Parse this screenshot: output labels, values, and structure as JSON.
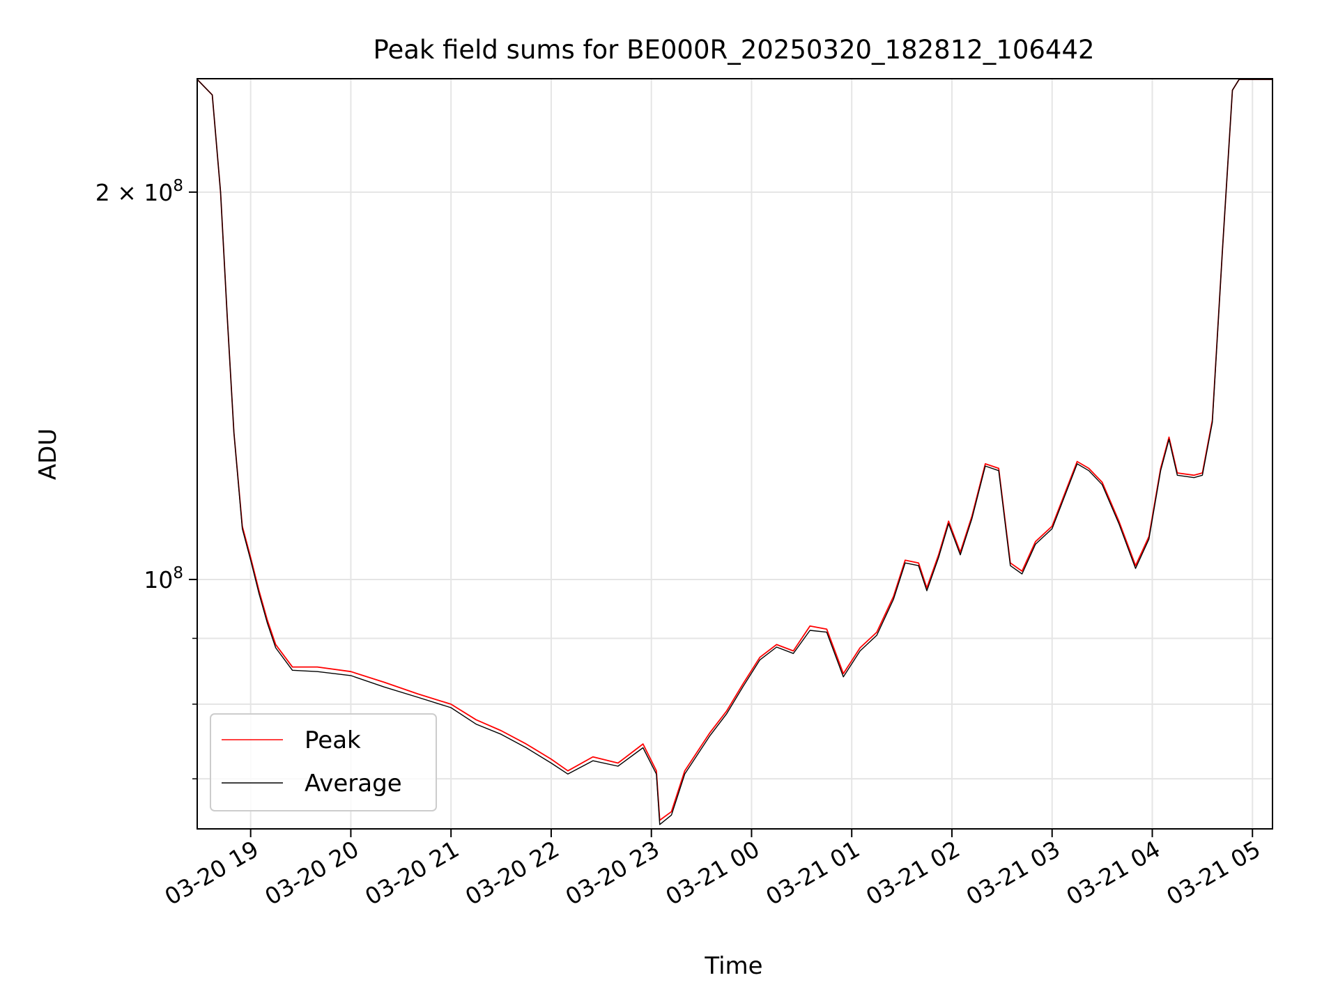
{
  "chart_data": {
    "type": "line",
    "title": "Peak field sums for BE000R_20250320_182812_106442",
    "xlabel": "Time",
    "ylabel": "ADU",
    "yscale": "log",
    "grid": true,
    "legend_position": "lower-left",
    "xlim": [
      "2025-03-20 18:28",
      "2025-03-21 05:12"
    ],
    "ylim": [
      64000000,
      245000000
    ],
    "x_ticks": [
      {
        "value": "2025-03-20 19:00",
        "label": "03-20 19"
      },
      {
        "value": "2025-03-20 20:00",
        "label": "03-20 20"
      },
      {
        "value": "2025-03-20 21:00",
        "label": "03-20 21"
      },
      {
        "value": "2025-03-20 22:00",
        "label": "03-20 22"
      },
      {
        "value": "2025-03-20 23:00",
        "label": "03-20 23"
      },
      {
        "value": "2025-03-21 00:00",
        "label": "03-21 00"
      },
      {
        "value": "2025-03-21 01:00",
        "label": "03-21 01"
      },
      {
        "value": "2025-03-21 02:00",
        "label": "03-21 02"
      },
      {
        "value": "2025-03-21 03:00",
        "label": "03-21 03"
      },
      {
        "value": "2025-03-21 04:00",
        "label": "03-21 04"
      },
      {
        "value": "2025-03-21 05:00",
        "label": "03-21 05"
      }
    ],
    "y_major_ticks": [
      {
        "value": 100000000,
        "base": "10",
        "exp": "8",
        "label": ""
      },
      {
        "value": 200000000,
        "base": "10",
        "exp": "8",
        "label": "2 × "
      }
    ],
    "y_minor_ticks": [
      70000000,
      80000000,
      90000000
    ],
    "series": [
      {
        "name": "Peak",
        "color": "#ff0000",
        "points": [
          [
            "2025-03-20 18:28",
            245000000
          ],
          [
            "2025-03-20 18:37",
            238000000
          ],
          [
            "2025-03-20 18:42",
            200000000
          ],
          [
            "2025-03-20 18:46",
            160000000
          ],
          [
            "2025-03-20 18:50",
            130000000
          ],
          [
            "2025-03-20 18:55",
            110000000
          ],
          [
            "2025-03-20 19:00",
            104000000
          ],
          [
            "2025-03-20 19:05",
            98000000
          ],
          [
            "2025-03-20 19:10",
            93000000
          ],
          [
            "2025-03-20 19:15",
            89000000
          ],
          [
            "2025-03-20 19:25",
            85500000
          ],
          [
            "2025-03-20 19:40",
            85500000
          ],
          [
            "2025-03-20 20:00",
            84800000
          ],
          [
            "2025-03-20 20:20",
            83200000
          ],
          [
            "2025-03-20 20:40",
            81500000
          ],
          [
            "2025-03-20 21:00",
            80000000
          ],
          [
            "2025-03-20 21:15",
            77800000
          ],
          [
            "2025-03-20 21:30",
            76300000
          ],
          [
            "2025-03-20 21:45",
            74500000
          ],
          [
            "2025-03-20 22:00",
            72500000
          ],
          [
            "2025-03-20 22:10",
            71000000
          ],
          [
            "2025-03-20 22:25",
            72800000
          ],
          [
            "2025-03-20 22:40",
            72000000
          ],
          [
            "2025-03-20 22:55",
            74500000
          ],
          [
            "2025-03-20 23:03",
            71000000
          ],
          [
            "2025-03-20 23:05",
            65000000
          ],
          [
            "2025-03-20 23:12",
            66000000
          ],
          [
            "2025-03-20 23:20",
            71000000
          ],
          [
            "2025-03-20 23:35",
            76000000
          ],
          [
            "2025-03-20 23:45",
            79000000
          ],
          [
            "2025-03-20 23:55",
            83000000
          ],
          [
            "2025-03-21 00:05",
            87000000
          ],
          [
            "2025-03-21 00:15",
            89000000
          ],
          [
            "2025-03-21 00:25",
            88000000
          ],
          [
            "2025-03-21 00:35",
            92000000
          ],
          [
            "2025-03-21 00:45",
            91500000
          ],
          [
            "2025-03-21 00:55",
            84500000
          ],
          [
            "2025-03-21 01:05",
            88500000
          ],
          [
            "2025-03-21 01:15",
            91000000
          ],
          [
            "2025-03-21 01:25",
            97000000
          ],
          [
            "2025-03-21 01:32",
            103500000
          ],
          [
            "2025-03-21 01:40",
            103000000
          ],
          [
            "2025-03-21 01:45",
            98500000
          ],
          [
            "2025-03-21 01:52",
            104500000
          ],
          [
            "2025-03-21 01:58",
            111000000
          ],
          [
            "2025-03-21 02:05",
            105000000
          ],
          [
            "2025-03-21 02:12",
            112000000
          ],
          [
            "2025-03-21 02:20",
            123000000
          ],
          [
            "2025-03-21 02:28",
            122000000
          ],
          [
            "2025-03-21 02:35",
            103000000
          ],
          [
            "2025-03-21 02:42",
            101500000
          ],
          [
            "2025-03-21 02:50",
            107000000
          ],
          [
            "2025-03-21 03:00",
            110000000
          ],
          [
            "2025-03-21 03:08",
            117000000
          ],
          [
            "2025-03-21 03:15",
            123500000
          ],
          [
            "2025-03-21 03:22",
            122000000
          ],
          [
            "2025-03-21 03:30",
            119000000
          ],
          [
            "2025-03-21 03:40",
            111000000
          ],
          [
            "2025-03-21 03:50",
            102500000
          ],
          [
            "2025-03-21 03:58",
            108000000
          ],
          [
            "2025-03-21 04:05",
            122000000
          ],
          [
            "2025-03-21 04:10",
            129000000
          ],
          [
            "2025-03-21 04:15",
            121000000
          ],
          [
            "2025-03-21 04:25",
            120500000
          ],
          [
            "2025-03-21 04:30",
            121000000
          ],
          [
            "2025-03-21 04:36",
            133000000
          ],
          [
            "2025-03-21 04:42",
            180000000
          ],
          [
            "2025-03-21 04:48",
            240000000
          ],
          [
            "2025-03-21 04:52",
            245000000
          ],
          [
            "2025-03-21 05:12",
            245000000
          ]
        ]
      },
      {
        "name": "Average",
        "color": "#000000",
        "points": [
          [
            "2025-03-20 18:28",
            245000000
          ],
          [
            "2025-03-20 18:37",
            238000000
          ],
          [
            "2025-03-20 18:42",
            200000000
          ],
          [
            "2025-03-20 18:46",
            160000000
          ],
          [
            "2025-03-20 18:50",
            130000000
          ],
          [
            "2025-03-20 18:55",
            109500000
          ],
          [
            "2025-03-20 19:00",
            103500000
          ],
          [
            "2025-03-20 19:05",
            97500000
          ],
          [
            "2025-03-20 19:10",
            92500000
          ],
          [
            "2025-03-20 19:15",
            88500000
          ],
          [
            "2025-03-20 19:25",
            85000000
          ],
          [
            "2025-03-20 19:40",
            84800000
          ],
          [
            "2025-03-20 20:00",
            84200000
          ],
          [
            "2025-03-20 20:20",
            82500000
          ],
          [
            "2025-03-20 20:40",
            81000000
          ],
          [
            "2025-03-20 21:00",
            79500000
          ],
          [
            "2025-03-20 21:15",
            77200000
          ],
          [
            "2025-03-20 21:30",
            75800000
          ],
          [
            "2025-03-20 21:45",
            74000000
          ],
          [
            "2025-03-20 22:00",
            72000000
          ],
          [
            "2025-03-20 22:10",
            70600000
          ],
          [
            "2025-03-20 22:25",
            72300000
          ],
          [
            "2025-03-20 22:40",
            71600000
          ],
          [
            "2025-03-20 22:55",
            74000000
          ],
          [
            "2025-03-20 23:03",
            70600000
          ],
          [
            "2025-03-20 23:05",
            64500000
          ],
          [
            "2025-03-20 23:12",
            65600000
          ],
          [
            "2025-03-20 23:20",
            70600000
          ],
          [
            "2025-03-20 23:35",
            75600000
          ],
          [
            "2025-03-20 23:45",
            78600000
          ],
          [
            "2025-03-20 23:55",
            82600000
          ],
          [
            "2025-03-21 00:05",
            86600000
          ],
          [
            "2025-03-21 00:15",
            88600000
          ],
          [
            "2025-03-21 00:25",
            87600000
          ],
          [
            "2025-03-21 00:35",
            91300000
          ],
          [
            "2025-03-21 00:45",
            91000000
          ],
          [
            "2025-03-21 00:55",
            84000000
          ],
          [
            "2025-03-21 01:05",
            88000000
          ],
          [
            "2025-03-21 01:15",
            90500000
          ],
          [
            "2025-03-21 01:25",
            96500000
          ],
          [
            "2025-03-21 01:32",
            103000000
          ],
          [
            "2025-03-21 01:40",
            102500000
          ],
          [
            "2025-03-21 01:45",
            98000000
          ],
          [
            "2025-03-21 01:52",
            104000000
          ],
          [
            "2025-03-21 01:58",
            110500000
          ],
          [
            "2025-03-21 02:05",
            104500000
          ],
          [
            "2025-03-21 02:12",
            111500000
          ],
          [
            "2025-03-21 02:20",
            122500000
          ],
          [
            "2025-03-21 02:28",
            121500000
          ],
          [
            "2025-03-21 02:35",
            102500000
          ],
          [
            "2025-03-21 02:42",
            101000000
          ],
          [
            "2025-03-21 02:50",
            106500000
          ],
          [
            "2025-03-21 03:00",
            109500000
          ],
          [
            "2025-03-21 03:08",
            116500000
          ],
          [
            "2025-03-21 03:15",
            123000000
          ],
          [
            "2025-03-21 03:22",
            121500000
          ],
          [
            "2025-03-21 03:30",
            118500000
          ],
          [
            "2025-03-21 03:40",
            110500000
          ],
          [
            "2025-03-21 03:50",
            102000000
          ],
          [
            "2025-03-21 03:58",
            107500000
          ],
          [
            "2025-03-21 04:05",
            121500000
          ],
          [
            "2025-03-21 04:10",
            128500000
          ],
          [
            "2025-03-21 04:15",
            120500000
          ],
          [
            "2025-03-21 04:25",
            120000000
          ],
          [
            "2025-03-21 04:30",
            120500000
          ],
          [
            "2025-03-21 04:36",
            132500000
          ],
          [
            "2025-03-21 04:42",
            180000000
          ],
          [
            "2025-03-21 04:48",
            240000000
          ],
          [
            "2025-03-21 04:52",
            245000000
          ],
          [
            "2025-03-21 05:12",
            245000000
          ]
        ]
      }
    ]
  }
}
